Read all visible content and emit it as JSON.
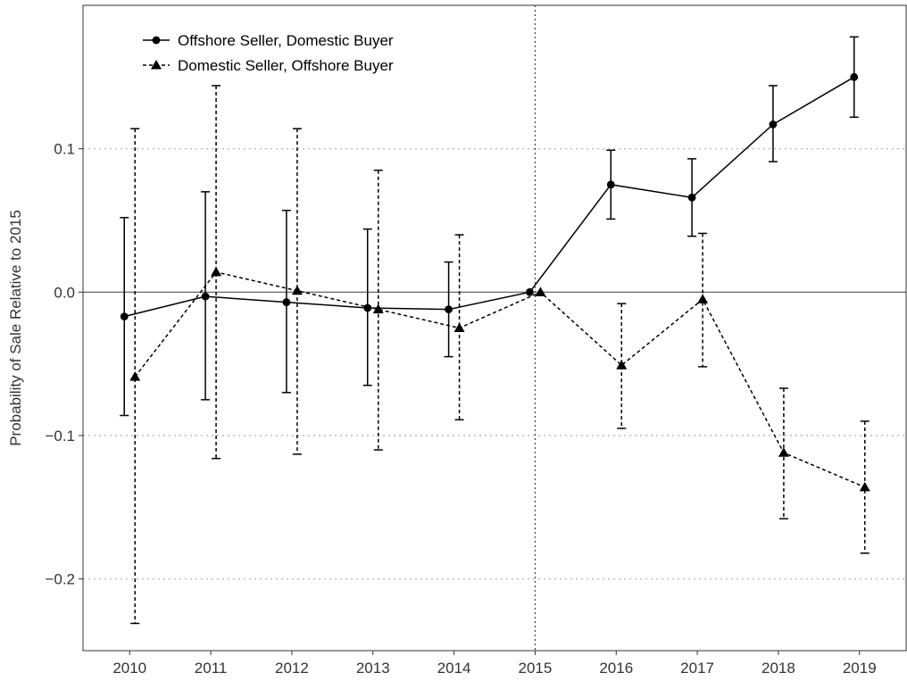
{
  "chart_data": {
    "type": "line",
    "title": "",
    "xlabel": "",
    "ylabel": "Probability of Sale Relative to 2015",
    "x": [
      2010,
      2011,
      2012,
      2013,
      2014,
      2015,
      2016,
      2017,
      2018,
      2019
    ],
    "x_tick_labels": [
      "2010",
      "2011",
      "2012",
      "2013",
      "2014",
      "2015",
      "2016",
      "2017",
      "2018",
      "2019"
    ],
    "y_ticks": [
      -0.2,
      -0.1,
      0.0,
      0.1
    ],
    "y_tick_labels": [
      "−0.2",
      "−0.1",
      "0.0",
      "0.1"
    ],
    "ylim": [
      -0.25,
      0.2
    ],
    "reference_lines": {
      "horizontal_y": 0.0,
      "vertical_x": 2015
    },
    "grid": "horizontal dotted at major ticks",
    "legend_position": "top-left",
    "series": [
      {
        "name": "Offshore Seller, Domestic Buyer",
        "marker": "circle",
        "line_style": "solid",
        "color": "#000000",
        "values": [
          -0.017,
          -0.003,
          -0.007,
          -0.011,
          -0.012,
          0.0,
          0.075,
          0.066,
          0.117,
          0.15
        ],
        "ci_low": [
          -0.086,
          -0.075,
          -0.07,
          -0.065,
          -0.045,
          0.0,
          0.051,
          0.039,
          0.091,
          0.122
        ],
        "ci_high": [
          0.052,
          0.07,
          0.057,
          0.044,
          0.021,
          0.0,
          0.099,
          0.093,
          0.144,
          0.178
        ]
      },
      {
        "name": "Domestic Seller, Offshore Buyer",
        "marker": "triangle",
        "line_style": "dashed",
        "color": "#000000",
        "values": [
          -0.059,
          0.014,
          0.001,
          -0.012,
          -0.025,
          0.0,
          -0.051,
          -0.005,
          -0.112,
          -0.136
        ],
        "ci_low": [
          -0.231,
          -0.116,
          -0.113,
          -0.11,
          -0.089,
          0.0,
          -0.095,
          -0.052,
          -0.158,
          -0.182
        ],
        "ci_high": [
          0.114,
          0.144,
          0.114,
          0.085,
          0.04,
          0.0,
          -0.008,
          0.041,
          -0.067,
          -0.09
        ]
      }
    ]
  }
}
